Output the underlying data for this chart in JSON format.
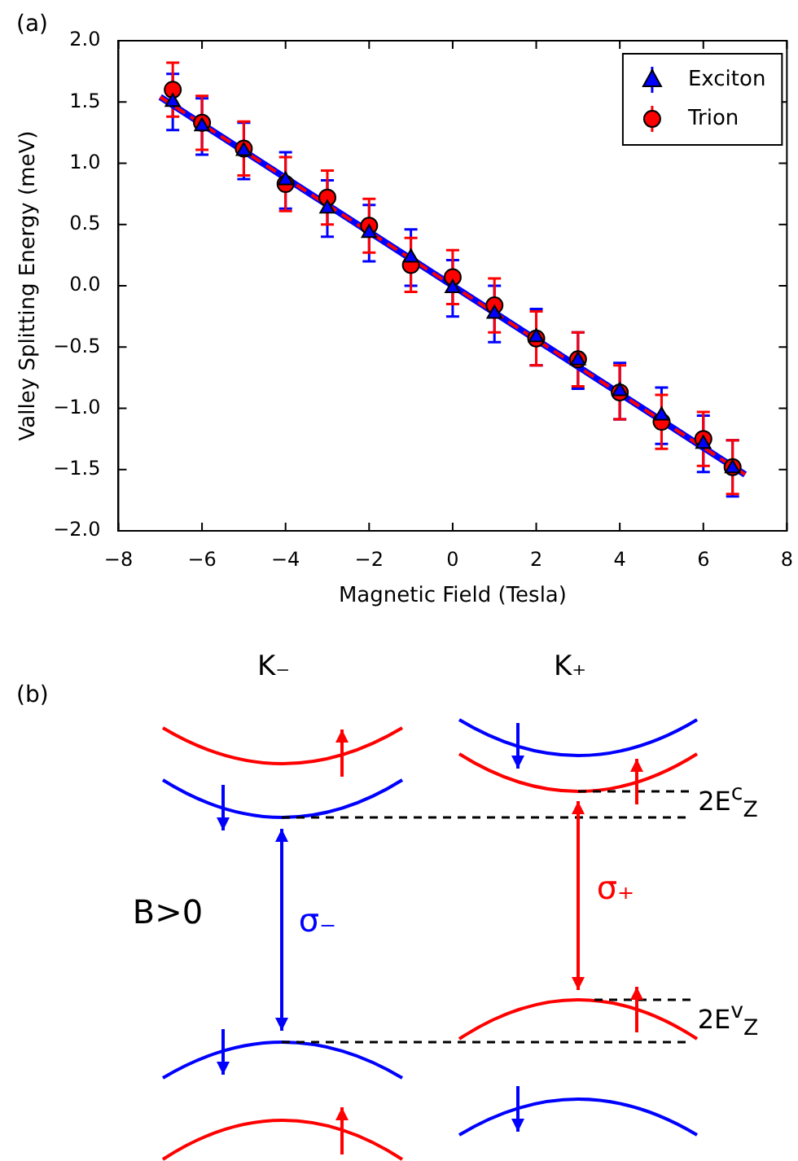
{
  "chart_data": {
    "type": "scatter",
    "xlabel": "Magnetic Field (Tesla)",
    "ylabel": "Valley Splitting Energy (meV)",
    "xlim": [
      -8,
      8
    ],
    "xticks": [
      {
        "value": -8,
        "label": "−8"
      },
      {
        "value": -6,
        "label": "−6"
      },
      {
        "value": -4,
        "label": "−4"
      },
      {
        "value": -2,
        "label": "−2"
      },
      0,
      2,
      4,
      6,
      8
    ],
    "ylim": [
      -2,
      2
    ],
    "yticks": [
      {
        "value": -2,
        "label": "−2.0"
      },
      {
        "value": -1.5,
        "label": "−1.5"
      },
      {
        "value": -1,
        "label": "−1.0"
      },
      {
        "value": -0.5,
        "label": "−0.5"
      },
      {
        "value": 0,
        "label": "0.0"
      },
      {
        "value": 0.5,
        "label": "0.5"
      },
      {
        "value": 1,
        "label": "1.0"
      },
      {
        "value": 1.5,
        "label": "1.5"
      },
      {
        "value": 2,
        "label": "2.0"
      }
    ],
    "grid": false,
    "legend": "top right",
    "series": [
      {
        "name": "Exciton",
        "color": "#0000ff",
        "marker": "triangle",
        "x": [
          -6.7,
          -6,
          -5,
          -4,
          -3,
          -2,
          -1,
          0,
          1,
          2,
          3,
          4,
          5,
          6,
          6.7
        ],
        "values": [
          1.5,
          1.3,
          1.1,
          0.86,
          0.63,
          0.43,
          0.23,
          -0.02,
          -0.23,
          -0.42,
          -0.61,
          -0.86,
          -1.06,
          -1.29,
          -1.49
        ],
        "errors": [
          0.23,
          0.23,
          0.23,
          0.23,
          0.23,
          0.23,
          0.23,
          0.23,
          0.23,
          0.23,
          0.23,
          0.23,
          0.23,
          0.23,
          0.23
        ]
      },
      {
        "name": "Trion",
        "color": "#ff0000",
        "marker": "circle",
        "x": [
          -6.7,
          -6,
          -5,
          -4,
          -3,
          -2,
          -1,
          0,
          1,
          2,
          3,
          4,
          5,
          6,
          6.7
        ],
        "values": [
          1.6,
          1.33,
          1.12,
          0.83,
          0.72,
          0.49,
          0.17,
          0.07,
          -0.16,
          -0.43,
          -0.6,
          -0.87,
          -1.11,
          -1.25,
          -1.48
        ],
        "errors": [
          0.22,
          0.22,
          0.22,
          0.22,
          0.22,
          0.22,
          0.22,
          0.22,
          0.22,
          0.22,
          0.22,
          0.22,
          0.22,
          0.22,
          0.22
        ]
      },
      {
        "type": "line",
        "color": "#0000ff",
        "line_style": "solid",
        "marker": "none",
        "x": [
          -7,
          7
        ],
        "values": [
          1.54,
          -1.54
        ]
      },
      {
        "type": "line",
        "color": "#ff0000",
        "line_style": "dashed",
        "marker": "none",
        "x": [
          -7,
          7
        ],
        "values": [
          1.54,
          -1.54
        ]
      }
    ],
    "annotations": [
      "(a)",
      "(b)",
      "K₋",
      "K₊",
      "B>0",
      "σ₋",
      "σ₊",
      "2E$^{c}$$_{Z}$",
      "2E$^{v}$$_{Z}$"
    ]
  }
}
